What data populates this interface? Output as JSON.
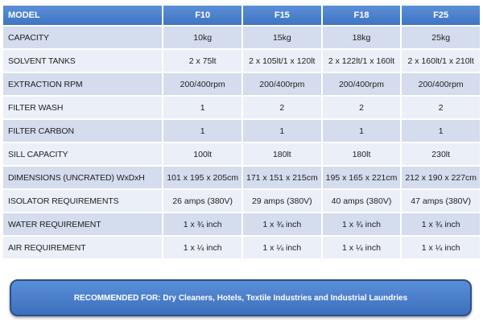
{
  "table": {
    "headers": [
      "MODEL",
      "F10",
      "F15",
      "F18",
      "F25"
    ],
    "rows": [
      [
        "CAPACITY",
        "10kg",
        "15kg",
        "18kg",
        "25kg"
      ],
      [
        "SOLVENT TANKS",
        "2 x 75lt",
        "2 x 105lt/1 x 120lt",
        "2 x 122lt/1 x 160lt",
        "2 x 160lt/1 x 210lt"
      ],
      [
        "EXTRACTION RPM",
        "200/400rpm",
        "200/400rpm",
        "200/400rpm",
        "200/400rpm"
      ],
      [
        "FILTER WASH",
        "1",
        "2",
        "2",
        "2"
      ],
      [
        "FILTER CARBON",
        "1",
        "1",
        "1",
        "1"
      ],
      [
        "SILL CAPACITY",
        "100lt",
        "180lt",
        "180lt",
        "230lt"
      ],
      [
        "DIMENSIONS (UNCRATED) WxDxH",
        "101 x 195 x 205cm",
        "171 x 151 x 215cm",
        "195 x 165 x 221cm",
        "212 x 190 x 227cm"
      ],
      [
        "ISOLATOR REQUIREMENTS",
        "26 amps (380V)",
        "29 amps (380V)",
        "40 amps (380V)",
        "47 amps (380V)"
      ],
      [
        "WATER REQUIREMENT",
        "1 x ¾ inch",
        "1 x ¾ inch",
        "1 x ¾ inch",
        "1 x ¾ inch"
      ],
      [
        "AIR REQUIREMENT",
        "1 x ¼ inch",
        "1 x ¼ inch",
        "1 x ¼ inch",
        "1 x ¼ inch"
      ]
    ]
  },
  "banner": {
    "text": "RECOMMENDED FOR: Dry Cleaners, Hotels, Textile Industries and Industrial Laundries"
  },
  "colors": {
    "header_blue": "#4a80cc",
    "row_dark": "#d4dcee",
    "row_light": "#ebeff7",
    "banner_blue": "#4a7fcb"
  }
}
